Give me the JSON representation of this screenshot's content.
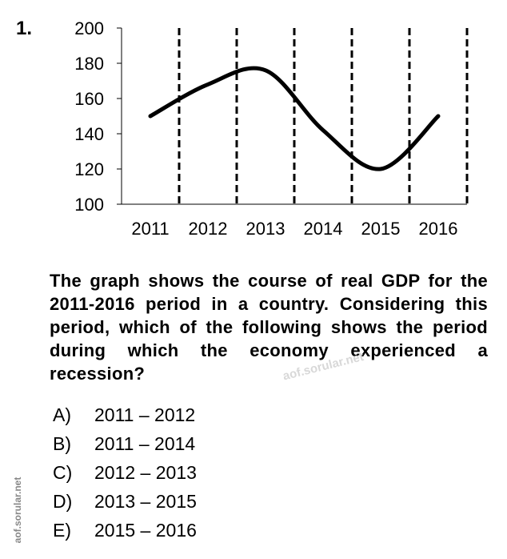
{
  "question_number": "1.",
  "chart_data": {
    "type": "line",
    "categories": [
      "2011",
      "2012",
      "2013",
      "2014",
      "2015",
      "2016"
    ],
    "series": [
      {
        "values": [
          150,
          168,
          176,
          142,
          120,
          150
        ]
      }
    ],
    "ylim": [
      100,
      200
    ],
    "yticks": [
      "100",
      "120",
      "140",
      "160",
      "180",
      "200"
    ],
    "grid": false,
    "line_color": "#000000"
  },
  "question_text": "The graph shows the course of real GDP for the 2011-2016 period in a country. Considering this period, which of the following shows the period during which the economy experienced a recession?",
  "options": [
    {
      "letter": "A)",
      "text": "2011 – 2012"
    },
    {
      "letter": "B)",
      "text": "2011 – 2014"
    },
    {
      "letter": "C)",
      "text": "2012 – 2013"
    },
    {
      "letter": "D)",
      "text": "2013 – 2015"
    },
    {
      "letter": "E)",
      "text": "2015 – 2016"
    }
  ],
  "watermark_center": "aof.sorular.net",
  "watermark_side": "aof.sorular.net"
}
